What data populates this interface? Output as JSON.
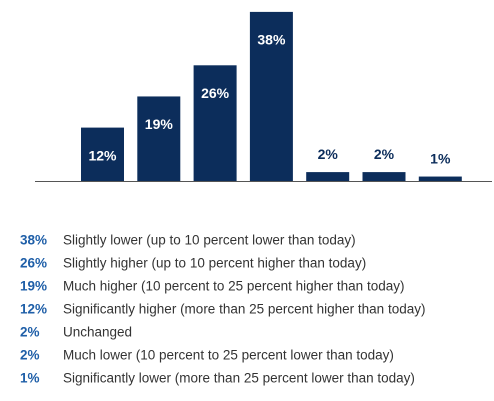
{
  "chart_data": {
    "type": "bar",
    "categories": [
      "Significantly higher (more than 25 percent higher than today)",
      "Much higher (10 percent to 25 percent higher than today)",
      "Slightly higher (up to 10 percent higher than today)",
      "Slightly lower (up to 10 percent lower than today)",
      "Unchanged",
      "Much lower (10 percent to 25 percent lower than today)",
      "Significantly lower (more than 25 percent lower than today)"
    ],
    "values": [
      12,
      19,
      26,
      38,
      2,
      2,
      1
    ],
    "value_labels": [
      "12%",
      "19%",
      "26%",
      "38%",
      "2%",
      "2%",
      "1%"
    ],
    "color": "#0c2d5b"
  }
}
